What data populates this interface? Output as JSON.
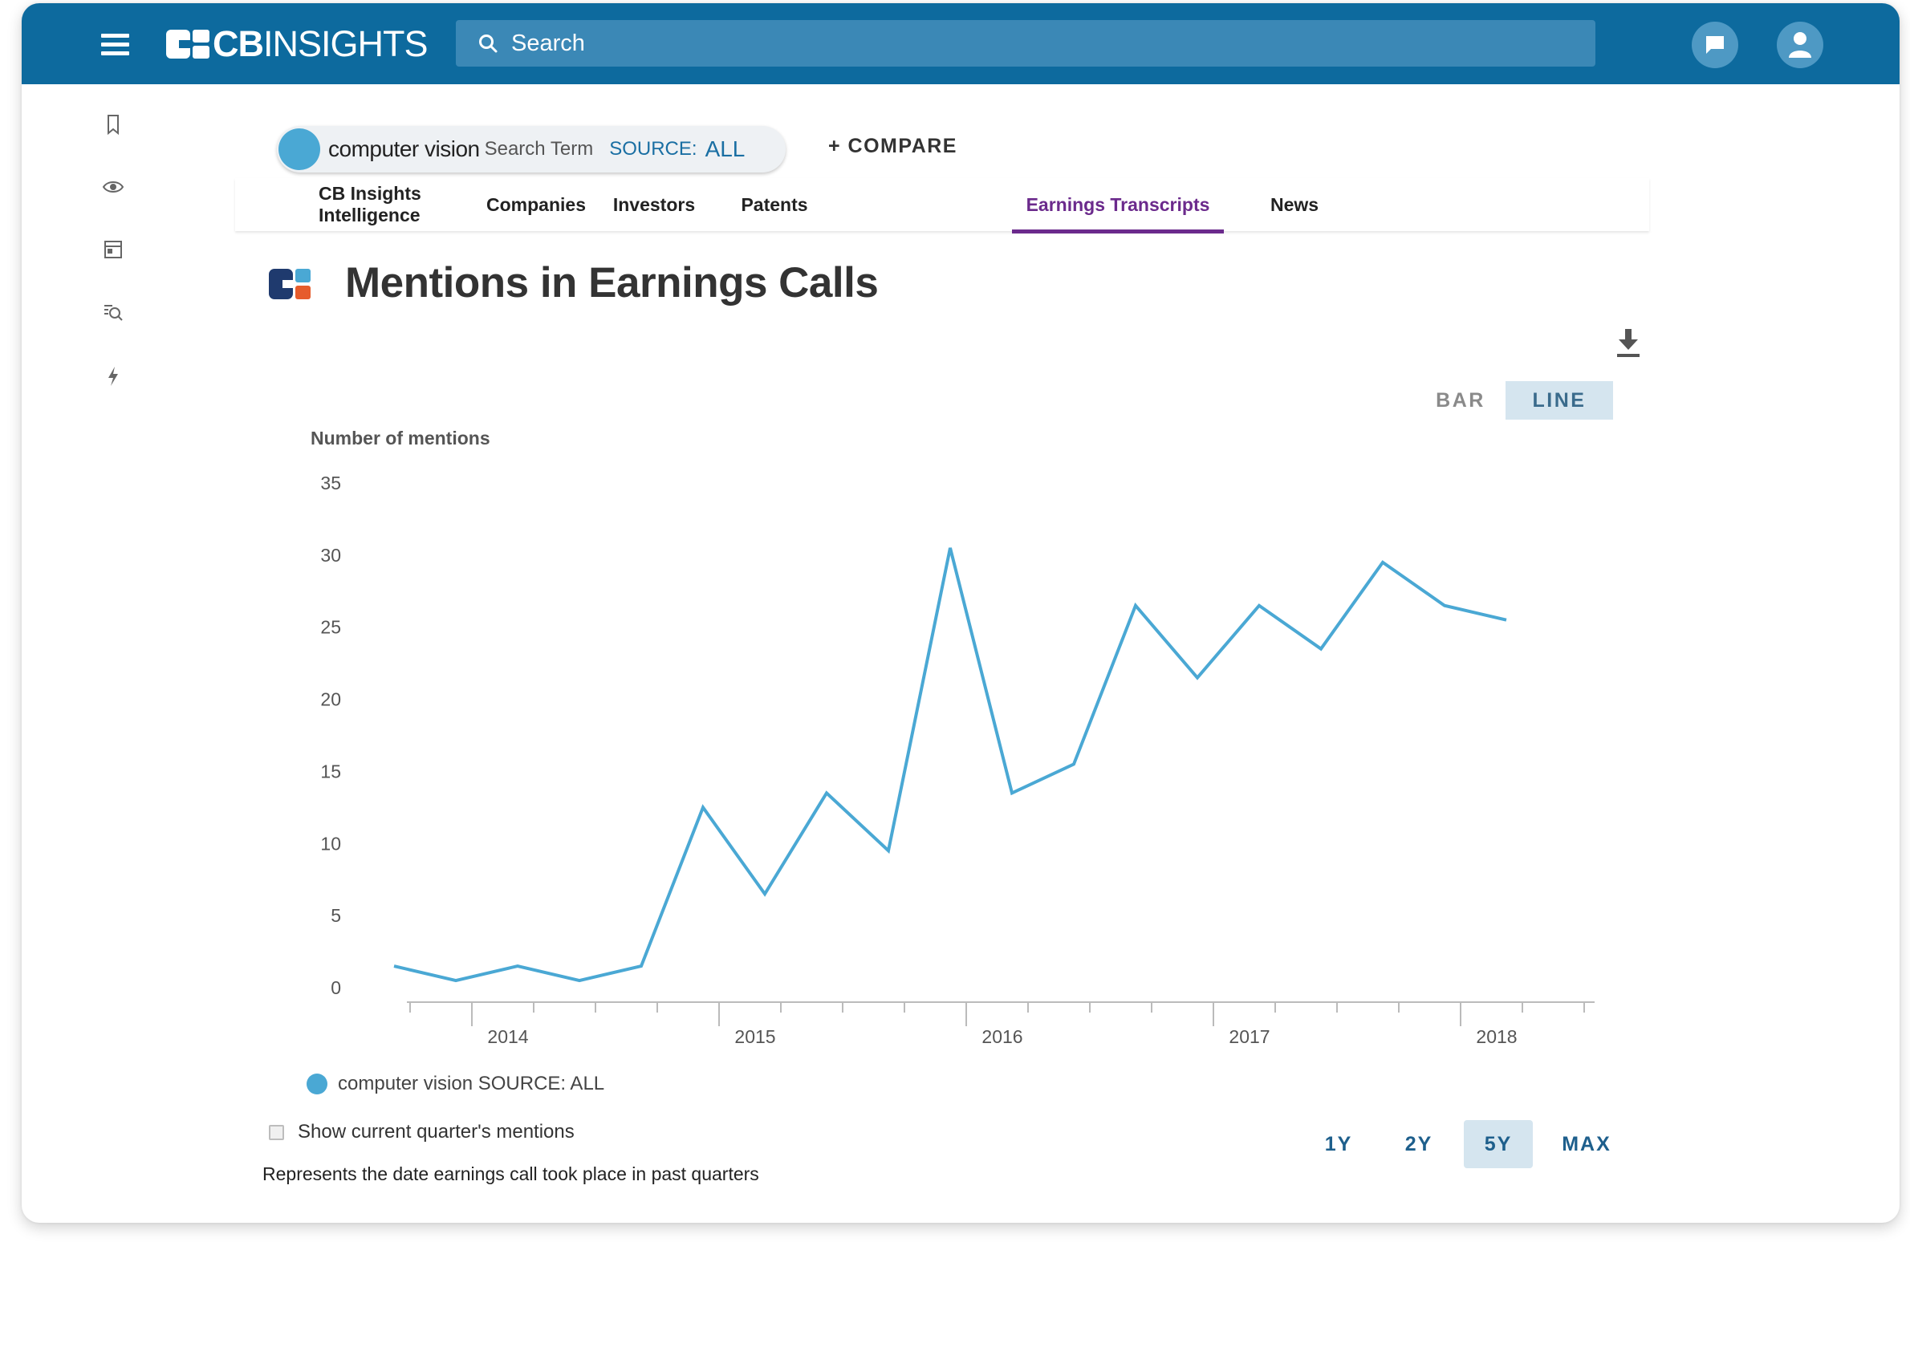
{
  "header": {
    "logo_bold": "CB",
    "logo_light": "INSIGHTS",
    "search_placeholder": "Search",
    "icons": [
      "menu-icon",
      "search-icon",
      "chat-icon",
      "user-icon"
    ]
  },
  "sidebar": {
    "icons": [
      "bookmark-icon",
      "eye-icon",
      "dashboard-icon",
      "search-list-icon",
      "lightning-icon"
    ]
  },
  "search_term": {
    "term": "computer vision",
    "type": "Search Term",
    "source_label": "SOURCE:",
    "source_value": "ALL",
    "color": "#4aa8d4"
  },
  "compare_label": "+ COMPARE",
  "tabs": [
    {
      "label": "CB Insights Intelligence",
      "active": false
    },
    {
      "label": "Companies",
      "active": false
    },
    {
      "label": "Investors",
      "active": false
    },
    {
      "label": "Patents",
      "active": false
    },
    {
      "label": "Earnings Transcripts",
      "active": true
    },
    {
      "label": "News",
      "active": false
    }
  ],
  "page_title": "Mentions in Earnings Calls",
  "chart_toggle": {
    "bar": "BAR",
    "line": "LINE",
    "selected": "LINE"
  },
  "chart_data": {
    "type": "line",
    "ylabel": "Number of mentions",
    "ylim": [
      0,
      35
    ],
    "yticks": [
      0,
      5,
      10,
      15,
      20,
      25,
      30,
      35
    ],
    "xticks": [
      "2014",
      "2015",
      "2016",
      "2017",
      "2018"
    ],
    "series": [
      {
        "name": "computer vision SOURCE: ALL",
        "color": "#4aa8d4",
        "x": [
          "2013-Q4",
          "2014-Q1",
          "2014-Q2",
          "2014-Q3",
          "2014-Q4",
          "2015-Q1",
          "2015-Q2",
          "2015-Q3",
          "2015-Q4",
          "2016-Q1",
          "2016-Q2",
          "2016-Q3",
          "2016-Q4",
          "2017-Q1",
          "2017-Q2",
          "2017-Q3",
          "2017-Q4",
          "2018-Q1",
          "2018-Q2"
        ],
        "values": [
          1.5,
          0.5,
          1.5,
          0.5,
          1.5,
          12.5,
          6.5,
          13.5,
          9.5,
          30.5,
          13.5,
          15.5,
          26.5,
          21.5,
          26.5,
          23.5,
          29.5,
          26.5,
          25.5
        ]
      }
    ],
    "legend": "bottom-left",
    "grid": false
  },
  "legend_label": "computer vision SOURCE: ALL",
  "show_current_quarter": {
    "label": "Show current quarter's mentions",
    "checked": false
  },
  "footnote": "Represents the date earnings call took place in past quarters",
  "ranges": [
    {
      "label": "1Y",
      "active": false
    },
    {
      "label": "2Y",
      "active": false
    },
    {
      "label": "5Y",
      "active": true
    },
    {
      "label": "MAX",
      "active": false
    }
  ]
}
